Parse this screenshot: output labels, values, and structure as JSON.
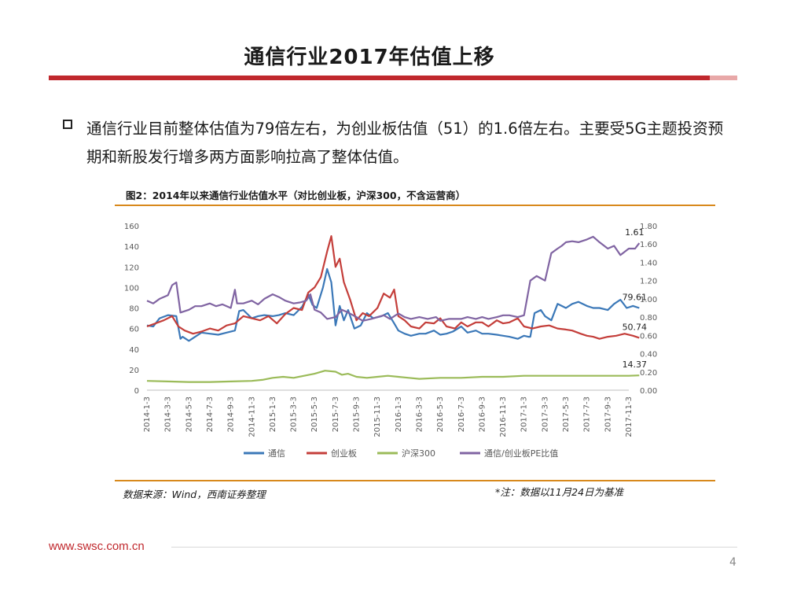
{
  "slide": {
    "title": "通信行业2017年估值上移",
    "bullet": "通信行业目前整体估值为79倍左右，为创业板估值（51）的1.6倍左右。主要受5G主题投资预期和新股发行增多两方面影响拉高了整体估值。",
    "source_note": "数据来源：Wind，西南证券整理",
    "date_note": "*注：数据以11月24日为基准",
    "website": "www.swsc.com.cn",
    "page_number": "4"
  },
  "colors": {
    "title_bar_red": "#c0282d",
    "title_bar_light": "#e8a8a8",
    "rule_orange": "#d8891c",
    "url_red": "#c0282d"
  },
  "chart_data": {
    "type": "line",
    "title": "图2：2014年以来通信行业估值水平（对比创业板，沪深300，不含运营商）",
    "x_ticks": [
      "2014-1-3",
      "2014-3-3",
      "2014-5-3",
      "2014-7-3",
      "2014-9-3",
      "2014-11-3",
      "2015-1-3",
      "2015-3-3",
      "2015-5-3",
      "2015-7-3",
      "2015-9-3",
      "2015-11-3",
      "2016-1-3",
      "2016-3-3",
      "2016-5-3",
      "2016-7-3",
      "2016-9-3",
      "2016-11-3",
      "2017-1-3",
      "2017-3-3",
      "2017-5-3",
      "2017-7-3",
      "2017-9-3",
      "2017-11-3"
    ],
    "y_left": {
      "min": 0,
      "max": 160,
      "ticks": [
        "0",
        "20",
        "40",
        "60",
        "80",
        "100",
        "120",
        "140",
        "160"
      ]
    },
    "y_right": {
      "min": 0,
      "max": 1.8,
      "ticks": [
        "0.00",
        "0.20",
        "0.40",
        "0.60",
        "0.80",
        "1.00",
        "1.20",
        "1.40",
        "1.60",
        "1.80"
      ]
    },
    "grid": false,
    "legend_position": "bottom",
    "series": [
      {
        "name": "通信",
        "axis": "left",
        "color": "#3b78b8",
        "end_label": "79.61",
        "x": [
          0,
          0.3,
          0.6,
          1,
          1.4,
          1.6,
          1.7,
          2,
          2.3,
          2.6,
          3,
          3.4,
          3.8,
          4.2,
          4.4,
          4.6,
          5,
          5.3,
          5.6,
          6,
          6.3,
          6.6,
          7,
          7.4,
          7.7,
          7.9,
          8.1,
          8.4,
          8.6,
          8.8,
          9,
          9.2,
          9.4,
          9.6,
          9.9,
          10.2,
          10.5,
          10.8,
          11.2,
          11.5,
          11.8,
          12,
          12.3,
          12.6,
          13,
          13.3,
          13.7,
          14,
          14.3,
          14.6,
          15,
          15.3,
          15.7,
          16,
          16.3,
          16.7,
          17,
          17.3,
          17.7,
          18,
          18.2,
          18.3,
          18.5,
          18.8,
          19,
          19.3,
          19.6,
          20,
          20.3,
          20.6,
          21,
          21.3,
          21.6,
          22,
          22.3,
          22.6,
          22.9,
          23.2,
          23.5
        ],
        "values": [
          63,
          62,
          70,
          73,
          72,
          50,
          52,
          48,
          52,
          56,
          55,
          54,
          56,
          58,
          77,
          78,
          70,
          72,
          73,
          72,
          73,
          75,
          73,
          81,
          93,
          83,
          80,
          100,
          118,
          105,
          63,
          82,
          68,
          78,
          60,
          63,
          75,
          70,
          72,
          75,
          65,
          58,
          55,
          53,
          55,
          55,
          58,
          54,
          55,
          57,
          62,
          56,
          58,
          55,
          55,
          54,
          53,
          52,
          50,
          53,
          52,
          52,
          75,
          78,
          72,
          68,
          84,
          80,
          84,
          86,
          82,
          80,
          80,
          78,
          84,
          88,
          80,
          82,
          80
        ]
      },
      {
        "name": "创业板",
        "axis": "left",
        "color": "#c43e3a",
        "end_label": "50.74",
        "x": [
          0,
          0.4,
          0.8,
          1.2,
          1.5,
          1.8,
          2.2,
          2.6,
          3,
          3.4,
          3.8,
          4.2,
          4.6,
          5,
          5.4,
          5.8,
          6.2,
          6.6,
          7,
          7.4,
          7.7,
          8,
          8.3,
          8.6,
          8.8,
          9,
          9.2,
          9.4,
          9.7,
          10,
          10.3,
          10.6,
          11,
          11.3,
          11.6,
          11.8,
          12,
          12.3,
          12.6,
          13,
          13.3,
          13.7,
          14,
          14.3,
          14.7,
          15,
          15.3,
          15.7,
          16,
          16.3,
          16.7,
          17,
          17.3,
          17.7,
          18,
          18.4,
          18.8,
          19.2,
          19.6,
          20,
          20.3,
          20.7,
          21,
          21.3,
          21.6,
          22,
          22.4,
          22.8,
          23.2,
          23.5
        ],
        "values": [
          62,
          65,
          68,
          72,
          62,
          58,
          55,
          57,
          60,
          58,
          63,
          65,
          72,
          70,
          68,
          72,
          65,
          74,
          80,
          78,
          95,
          100,
          110,
          135,
          150,
          120,
          128,
          105,
          88,
          68,
          75,
          72,
          80,
          94,
          90,
          98,
          72,
          68,
          62,
          60,
          66,
          65,
          70,
          62,
          60,
          66,
          62,
          66,
          66,
          62,
          68,
          65,
          66,
          70,
          62,
          60,
          62,
          63,
          60,
          59,
          58,
          55,
          53,
          52,
          50,
          52,
          53,
          55,
          53,
          51
        ]
      },
      {
        "name": "沪深300",
        "axis": "left",
        "color": "#9bbb59",
        "end_label": "14.37",
        "x": [
          0,
          1,
          2,
          3,
          4,
          5,
          5.5,
          6,
          6.5,
          7,
          7.5,
          8,
          8.5,
          9,
          9.3,
          9.6,
          10,
          10.5,
          11,
          11.5,
          12,
          12.5,
          13,
          14,
          15,
          16,
          17,
          18,
          19,
          20,
          21,
          22,
          23,
          23.5
        ],
        "values": [
          9,
          8.5,
          8,
          8,
          8.5,
          9,
          10,
          12,
          13,
          12,
          14,
          16,
          19,
          18,
          15,
          16,
          13,
          12,
          13,
          14,
          13,
          12,
          11,
          12,
          12,
          13,
          13,
          14,
          14,
          14,
          14,
          14,
          14,
          14.37
        ]
      },
      {
        "name": "通信/创业板PE比值",
        "axis": "right",
        "color": "#8064a2",
        "end_label": "1.61",
        "x": [
          0,
          0.3,
          0.6,
          1,
          1.2,
          1.4,
          1.6,
          2,
          2.3,
          2.6,
          3,
          3.3,
          3.6,
          4,
          4.2,
          4.3,
          4.6,
          5,
          5.3,
          5.6,
          6,
          6.3,
          6.6,
          7,
          7.3,
          7.6,
          7.8,
          8,
          8.3,
          8.6,
          9,
          9.3,
          9.6,
          10,
          10.3,
          10.7,
          11,
          11.3,
          11.6,
          12,
          12.3,
          12.6,
          13,
          13.4,
          13.8,
          14,
          14.4,
          14.8,
          15,
          15.3,
          15.7,
          16,
          16.3,
          16.7,
          17,
          17.3,
          17.7,
          18,
          18.3,
          18.6,
          19,
          19.3,
          19.6,
          19.8,
          20,
          20.3,
          20.6,
          21,
          21.3,
          21.6,
          22,
          22.3,
          22.6,
          23,
          23.3,
          23.5
        ],
        "values": [
          0.98,
          0.95,
          1.0,
          1.04,
          1.15,
          1.18,
          0.85,
          0.88,
          0.92,
          0.92,
          0.95,
          0.92,
          0.94,
          0.9,
          1.1,
          0.95,
          0.95,
          0.98,
          0.94,
          1.0,
          1.05,
          1.02,
          0.98,
          0.95,
          0.96,
          0.98,
          1.05,
          0.88,
          0.85,
          0.78,
          0.8,
          0.88,
          0.85,
          0.8,
          0.76,
          0.78,
          0.8,
          0.82,
          0.78,
          0.84,
          0.8,
          0.78,
          0.8,
          0.78,
          0.8,
          0.76,
          0.78,
          0.78,
          0.78,
          0.8,
          0.78,
          0.8,
          0.78,
          0.8,
          0.82,
          0.82,
          0.8,
          0.82,
          1.2,
          1.25,
          1.2,
          1.5,
          1.55,
          1.58,
          1.62,
          1.63,
          1.62,
          1.65,
          1.68,
          1.62,
          1.55,
          1.58,
          1.48,
          1.55,
          1.55,
          1.61
        ]
      }
    ],
    "end_labels_note_omitted": false
  }
}
